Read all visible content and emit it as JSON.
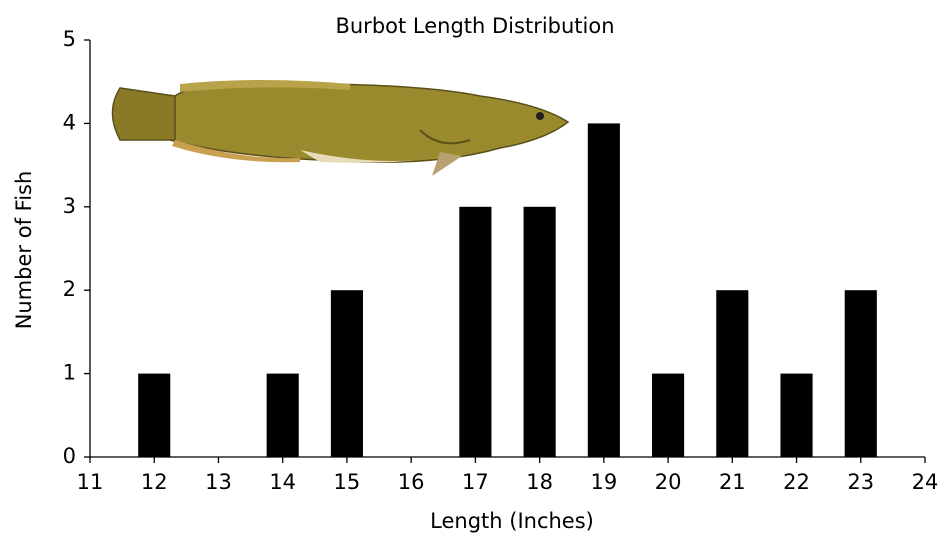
{
  "chart_data": {
    "type": "bar",
    "title": "Burbot Length Distribution",
    "x_label": "Length (Inches)",
    "y_label": "Number of Fish",
    "x": [
      12,
      14,
      15,
      17,
      18,
      19,
      20,
      21,
      22,
      23
    ],
    "values": [
      1,
      1,
      2,
      3,
      3,
      4,
      1,
      2,
      1,
      2
    ],
    "color": "#000000",
    "xlim": [
      11,
      24
    ],
    "xticks": [
      11,
      12,
      13,
      14,
      15,
      16,
      17,
      18,
      19,
      20,
      21,
      22,
      23,
      24
    ],
    "ylim": [
      0,
      5
    ],
    "yticks": [
      0,
      1,
      2,
      3,
      4,
      5
    ],
    "grid": false
  }
}
